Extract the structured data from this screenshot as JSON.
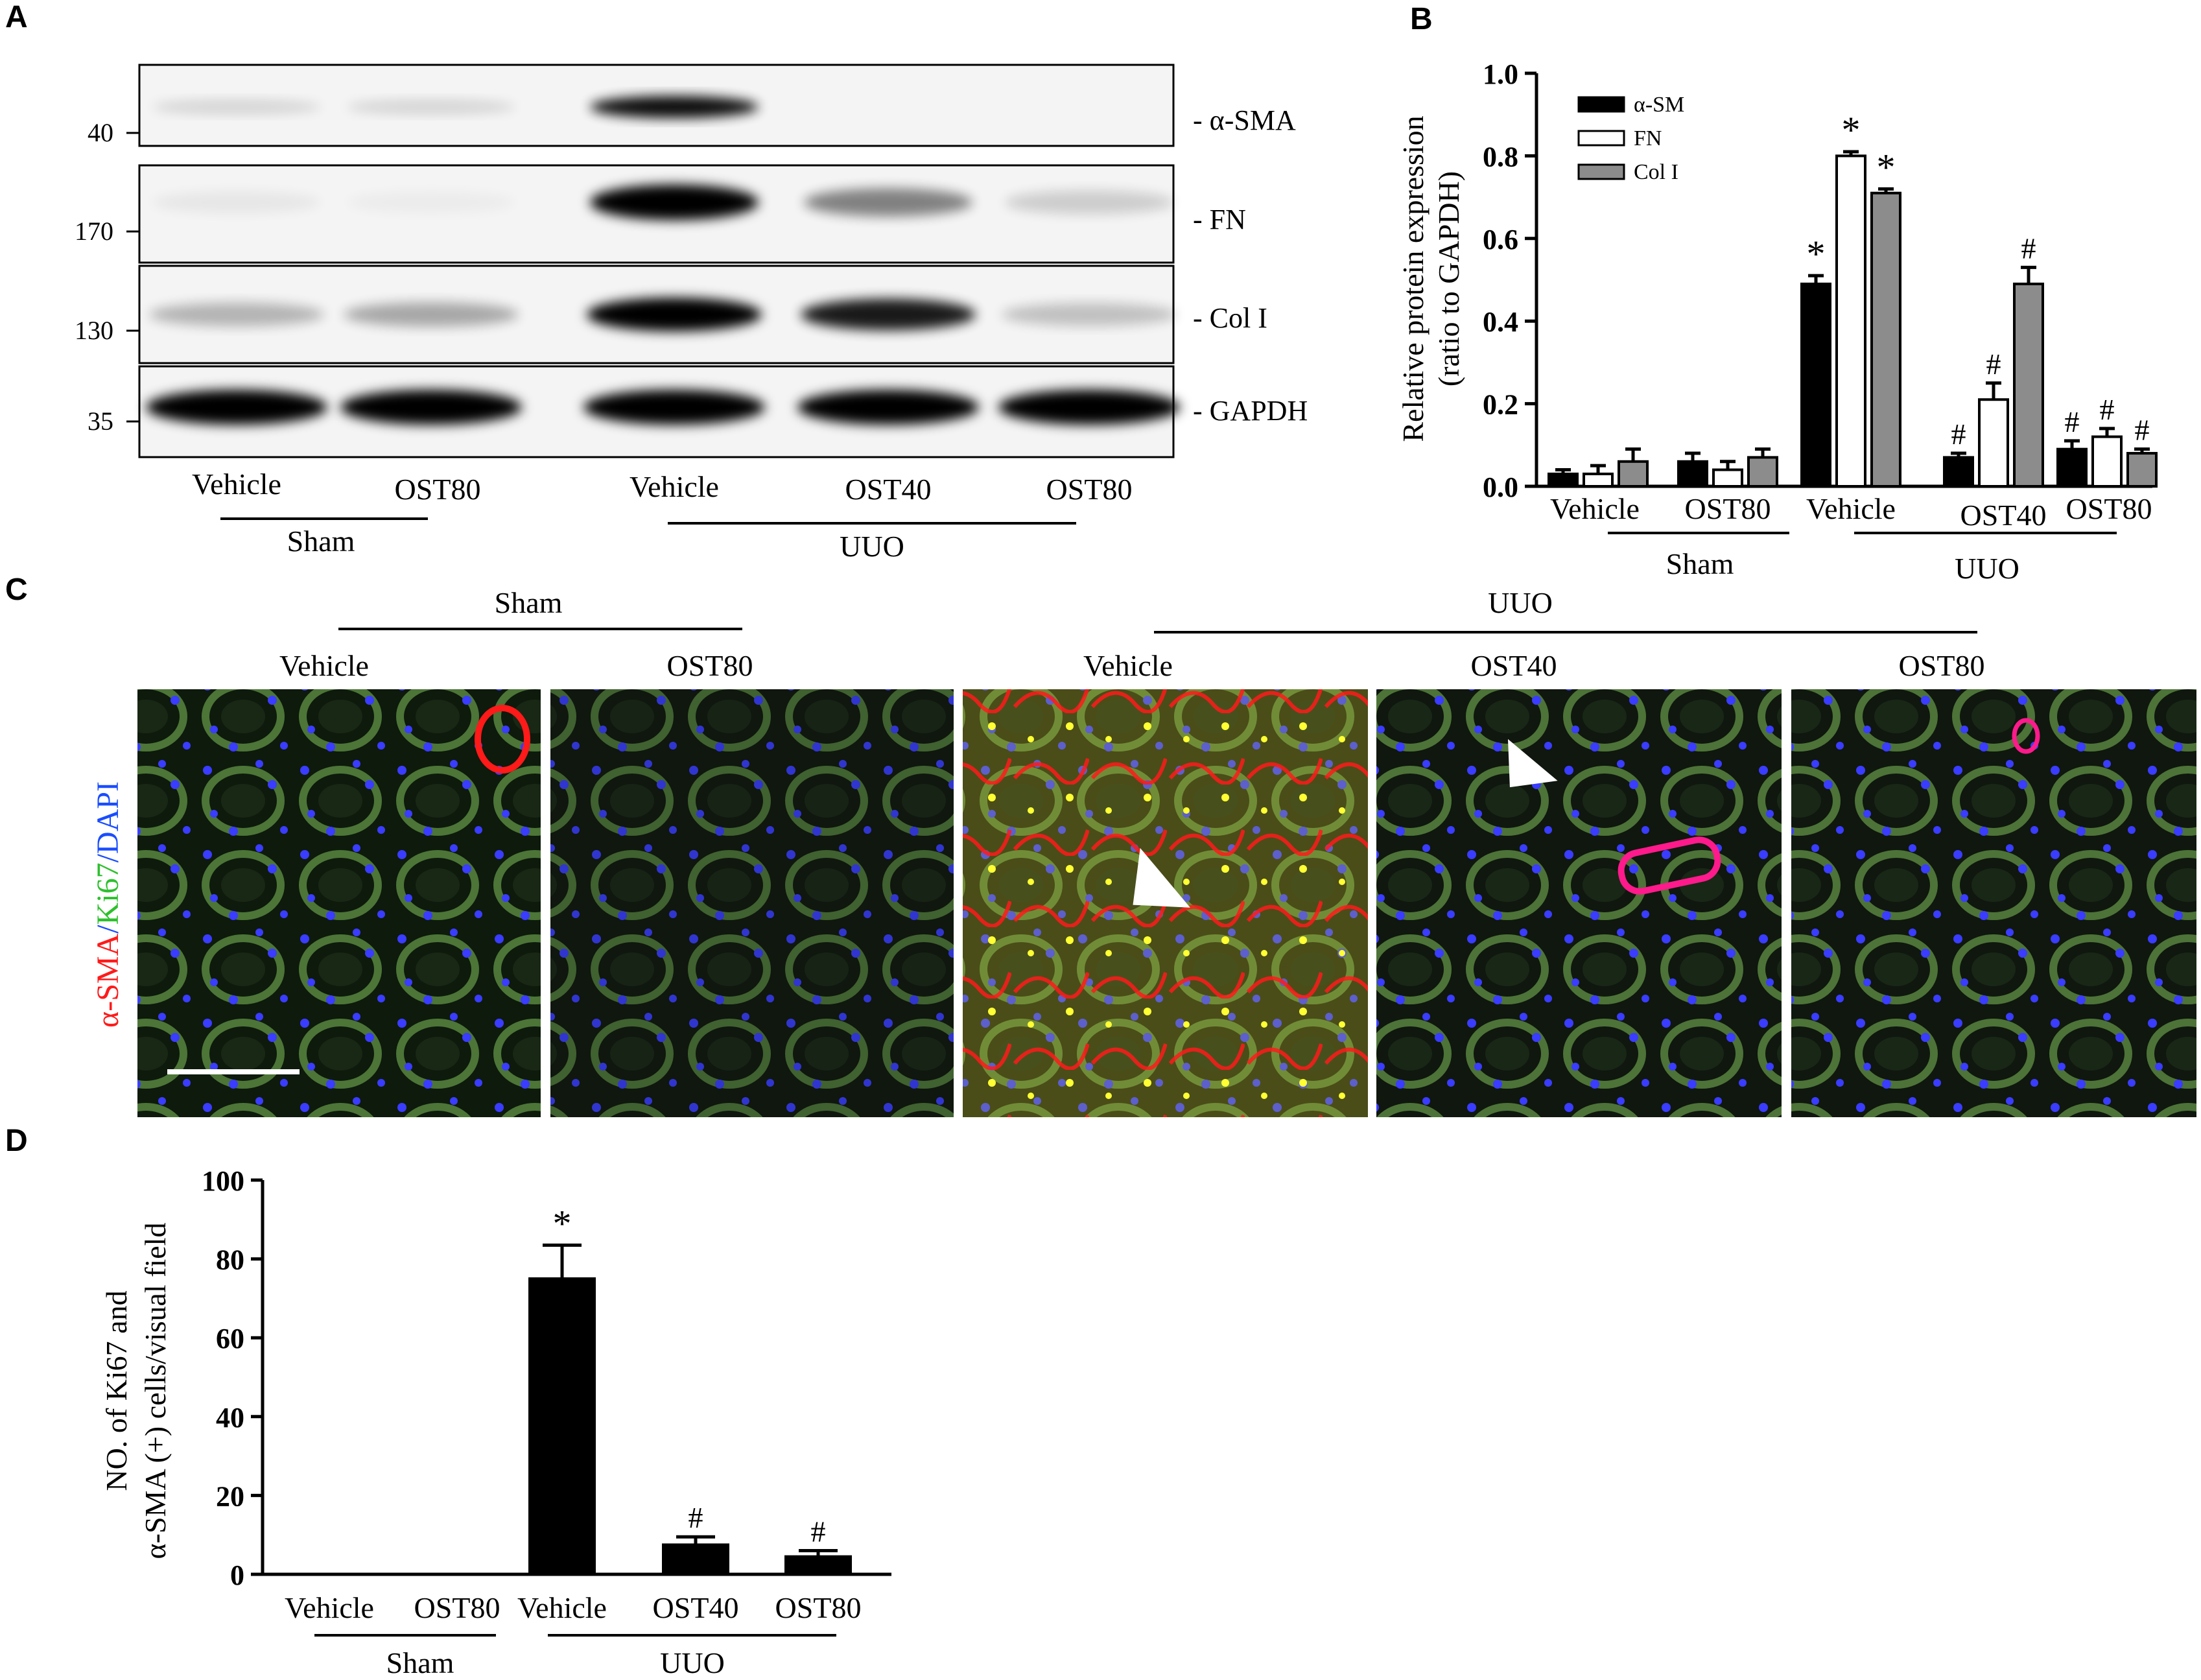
{
  "panels": {
    "A": {
      "label": "A",
      "markers": [
        "40",
        "170",
        "130",
        "35"
      ],
      "proteins": [
        "- α-SMA",
        "- FN",
        "- Col I",
        "- GAPDH"
      ],
      "lanes": [
        "Vehicle",
        "OST80",
        "Vehicle",
        "OST40",
        "OST80"
      ],
      "groups": [
        "Sham",
        "UUO"
      ],
      "band_intensity": {
        "α-SMA": [
          0.12,
          0.12,
          0.9,
          0.0,
          0.0
        ],
        "FN": [
          0.05,
          0.03,
          0.95,
          0.45,
          0.15
        ],
        "Col I": [
          0.25,
          0.3,
          1.0,
          0.85,
          0.2
        ],
        "GAPDH": [
          1.0,
          1.0,
          1.0,
          1.0,
          1.0
        ]
      }
    },
    "B": {
      "label": "B"
    },
    "C": {
      "label": "C",
      "groups": [
        "Sham",
        "UUO"
      ],
      "columns": [
        "Vehicle",
        "OST80",
        "Vehicle",
        "OST40",
        "OST80"
      ],
      "stain_label": {
        "part1": "α-SMA",
        "sep1": "/",
        "part2": "Ki67",
        "sep2": "/",
        "part3": "DAPI"
      },
      "stain_colors": {
        "a_sma": "#ff1a1a",
        "ki67": "#2ec02e",
        "dapi": "#1a4dff"
      }
    },
    "D": {
      "label": "D"
    }
  },
  "chart_data": [
    {
      "type": "bar",
      "panel": "B",
      "categories": [
        "Vehicle",
        "OST80",
        "Vehicle",
        "OST40",
        "OST80"
      ],
      "groups": [
        "Sham",
        "UUO"
      ],
      "ylabel_line1": "Relative protein expression",
      "ylabel_line2": "(ratio to GAPDH)",
      "ylim": [
        0,
        1.0
      ],
      "yticks": [
        "0.0",
        "0.2",
        "0.4",
        "0.6",
        "0.8",
        "1.0"
      ],
      "legend_position": "top-left",
      "series": [
        {
          "name": "α-SM",
          "color": "#000000",
          "values": [
            0.03,
            0.06,
            0.49,
            0.07,
            0.09
          ],
          "errors": [
            0.01,
            0.02,
            0.02,
            0.01,
            0.02
          ],
          "marks": [
            "",
            "",
            "*",
            "#",
            "#"
          ]
        },
        {
          "name": "FN",
          "color": "#ffffff",
          "values": [
            0.03,
            0.04,
            0.8,
            0.21,
            0.12
          ],
          "errors": [
            0.02,
            0.02,
            0.01,
            0.04,
            0.02
          ],
          "marks": [
            "",
            "",
            "*",
            "#",
            "#"
          ]
        },
        {
          "name": "Col I",
          "color": "#8c8c8c",
          "values": [
            0.06,
            0.07,
            0.71,
            0.49,
            0.08
          ],
          "errors": [
            0.03,
            0.02,
            0.01,
            0.04,
            0.01
          ],
          "marks": [
            "",
            "",
            "*",
            "#",
            "#"
          ]
        }
      ]
    },
    {
      "type": "bar",
      "panel": "D",
      "categories": [
        "Vehicle",
        "OST80",
        "Vehicle",
        "OST40",
        "OST80"
      ],
      "groups": [
        "Sham",
        "UUO"
      ],
      "ylabel_line1": "NO. of Ki67 and",
      "ylabel_line2": "α-SMA (+) cells/visual  field",
      "ylim": [
        0,
        100
      ],
      "yticks": [
        "0",
        "20",
        "40",
        "60",
        "80",
        "100"
      ],
      "series": [
        {
          "color": "#000000",
          "values": [
            0,
            0,
            75,
            7.5,
            4.5
          ],
          "errors": [
            0,
            0,
            8.5,
            2,
            1.5
          ],
          "marks": [
            "",
            "",
            "*",
            "#",
            "#"
          ]
        }
      ]
    }
  ]
}
